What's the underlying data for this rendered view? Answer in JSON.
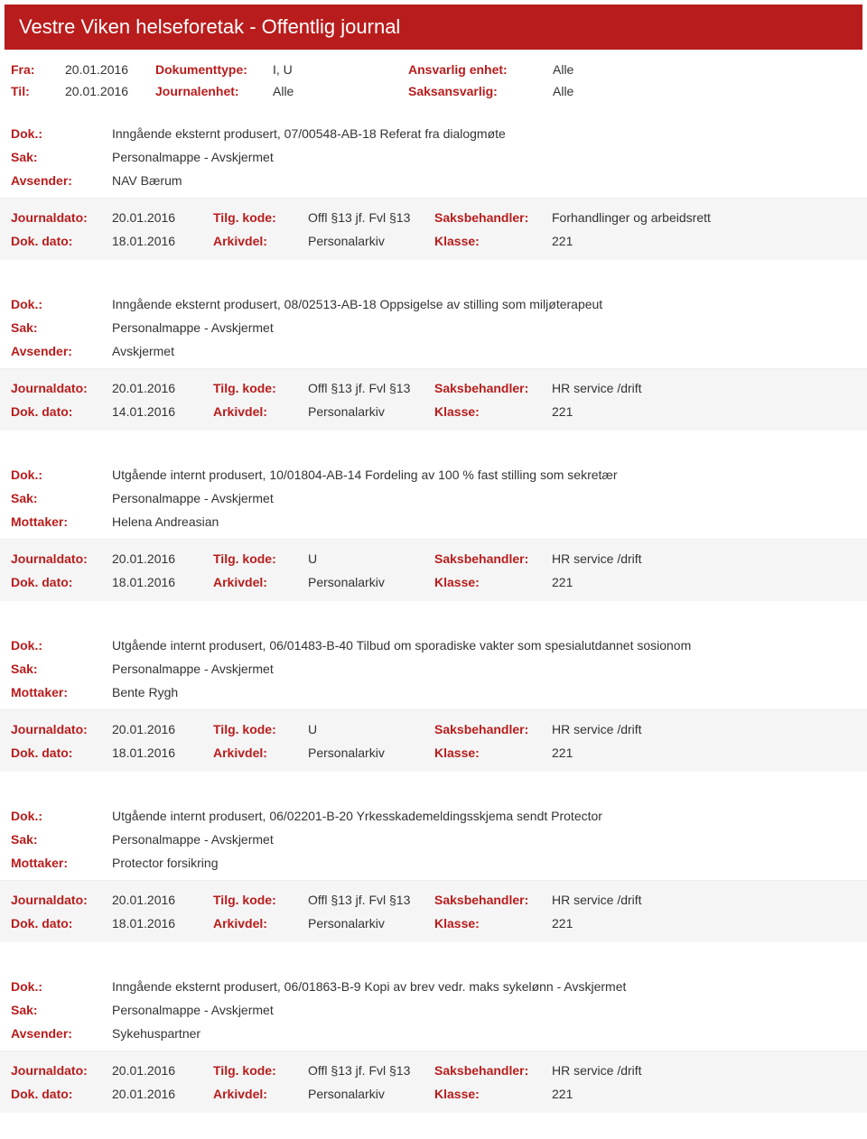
{
  "header": {
    "title": "Vestre Viken helseforetak - Offentlig journal"
  },
  "filters": {
    "row1": {
      "fra_label": "Fra:",
      "fra_value": "20.01.2016",
      "doktype_label": "Dokumenttype:",
      "doktype_value": "I, U",
      "enhet_label": "Ansvarlig enhet:",
      "enhet_value": "Alle"
    },
    "row2": {
      "til_label": "Til:",
      "til_value": "20.01.2016",
      "journ_label": "Journalenhet:",
      "journ_value": "Alle",
      "saks_label": "Saksansvarlig:",
      "saks_value": "Alle"
    }
  },
  "labels": {
    "dok": "Dok.:",
    "sak": "Sak:",
    "avsender": "Avsender:",
    "mottaker": "Mottaker:",
    "journaldato": "Journaldato:",
    "dokdato": "Dok. dato:",
    "tilgkode": "Tilg. kode:",
    "arkivdel": "Arkivdel:",
    "saksbehandler": "Saksbehandler:",
    "klasse": "Klasse:"
  },
  "entries": [
    {
      "dok": "Inngående eksternt produsert, 07/00548-AB-18 Referat fra dialogmøte",
      "sak": "Personalmappe - Avskjermet",
      "party_label": "avsender",
      "party": "NAV Bærum",
      "journaldato": "20.01.2016",
      "tilgkode": "Offl §13 jf. Fvl §13",
      "saksbehandler": "Forhandlinger og arbeidsrett",
      "dokdato": "18.01.2016",
      "arkivdel": "Personalarkiv",
      "klasse": "221"
    },
    {
      "dok": "Inngående eksternt produsert, 08/02513-AB-18 Oppsigelse av stilling som miljøterapeut",
      "sak": "Personalmappe - Avskjermet",
      "party_label": "avsender",
      "party": "Avskjermet",
      "journaldato": "20.01.2016",
      "tilgkode": "Offl §13 jf. Fvl §13",
      "saksbehandler": "HR service /drift",
      "dokdato": "14.01.2016",
      "arkivdel": "Personalarkiv",
      "klasse": "221"
    },
    {
      "dok": "Utgående internt produsert, 10/01804-AB-14 Fordeling av 100 % fast stilling som sekretær",
      "sak": "Personalmappe - Avskjermet",
      "party_label": "mottaker",
      "party": "Helena Andreasian",
      "journaldato": "20.01.2016",
      "tilgkode": "U",
      "saksbehandler": "HR service /drift",
      "dokdato": "18.01.2016",
      "arkivdel": "Personalarkiv",
      "klasse": "221"
    },
    {
      "dok": "Utgående internt produsert, 06/01483-B-40 Tilbud om sporadiske vakter som spesialutdannet sosionom",
      "sak": "Personalmappe - Avskjermet",
      "party_label": "mottaker",
      "party": "Bente Rygh",
      "journaldato": "20.01.2016",
      "tilgkode": "U",
      "saksbehandler": "HR service /drift",
      "dokdato": "18.01.2016",
      "arkivdel": "Personalarkiv",
      "klasse": "221"
    },
    {
      "dok": "Utgående internt produsert, 06/02201-B-20 Yrkesskademeldingsskjema sendt Protector",
      "sak": "Personalmappe - Avskjermet",
      "party_label": "mottaker",
      "party": "Protector forsikring",
      "journaldato": "20.01.2016",
      "tilgkode": "Offl §13 jf. Fvl §13",
      "saksbehandler": "HR service /drift",
      "dokdato": "18.01.2016",
      "arkivdel": "Personalarkiv",
      "klasse": "221"
    },
    {
      "dok": "Inngående eksternt produsert, 06/01863-B-9 Kopi av brev vedr. maks sykelønn - Avskjermet",
      "sak": "Personalmappe - Avskjermet",
      "party_label": "avsender",
      "party": "Sykehuspartner",
      "journaldato": "20.01.2016",
      "tilgkode": "Offl §13 jf. Fvl §13",
      "saksbehandler": "HR service /drift",
      "dokdato": "20.01.2016",
      "arkivdel": "Personalarkiv",
      "klasse": "221"
    }
  ]
}
